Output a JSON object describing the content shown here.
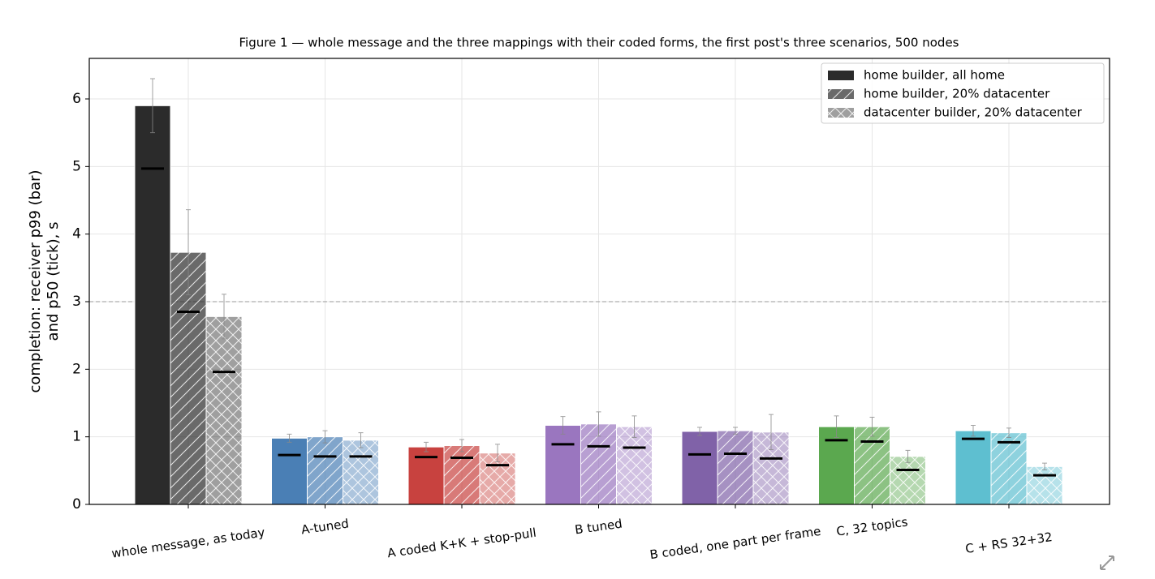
{
  "chart_data": {
    "type": "bar",
    "title": "Figure 1 — whole message and the three mappings with their coded forms, the first post's three scenarios, 500 nodes",
    "y_label": [
      "completion: receiver p99 (bar)",
      "and p50 (tick), s"
    ],
    "categories": [
      "whole message, as today",
      "A-tuned",
      "A coded K+K + stop-pull",
      "B tuned",
      "B coded, one part per frame",
      "C, 32 topics",
      "C + RS 32+32"
    ],
    "category_colors": [
      "#2b2b2b",
      "#4a7fb5",
      "#c8423f",
      "#9a76bf",
      "#8062a8",
      "#5ba84f",
      "#5ebfd0"
    ],
    "series": [
      {
        "name": "home builder, all home",
        "hatch": "none",
        "alpha": 1,
        "values": [
          5.9,
          0.98,
          0.85,
          1.17,
          1.08,
          1.15,
          1.09
        ],
        "errors": [
          0.4,
          0.06,
          0.07,
          0.13,
          0.06,
          0.16,
          0.08
        ],
        "p50": [
          4.97,
          0.73,
          0.7,
          0.89,
          0.74,
          0.95,
          0.97
        ]
      },
      {
        "name": "home builder, 20% datacenter",
        "hatch": "slash",
        "alpha": 0.7,
        "values": [
          3.73,
          1.0,
          0.87,
          1.19,
          1.09,
          1.15,
          1.06
        ],
        "errors": [
          0.63,
          0.09,
          0.09,
          0.18,
          0.05,
          0.14,
          0.07
        ],
        "p50": [
          2.85,
          0.71,
          0.69,
          0.86,
          0.75,
          0.93,
          0.92
        ]
      },
      {
        "name": "datacenter builder, 20% datacenter",
        "hatch": "cross",
        "alpha": 0.45,
        "values": [
          2.78,
          0.95,
          0.76,
          1.15,
          1.07,
          0.71,
          0.56
        ],
        "errors": [
          0.33,
          0.11,
          0.13,
          0.16,
          0.26,
          0.09,
          0.05
        ],
        "p50": [
          1.96,
          0.71,
          0.58,
          0.84,
          0.68,
          0.51,
          0.43
        ]
      }
    ],
    "ylim": [
      0,
      6.6
    ],
    "yticks": [
      0,
      1,
      2,
      3,
      4,
      5,
      6
    ],
    "grid": true,
    "hline": 3,
    "legend": "upper right"
  }
}
